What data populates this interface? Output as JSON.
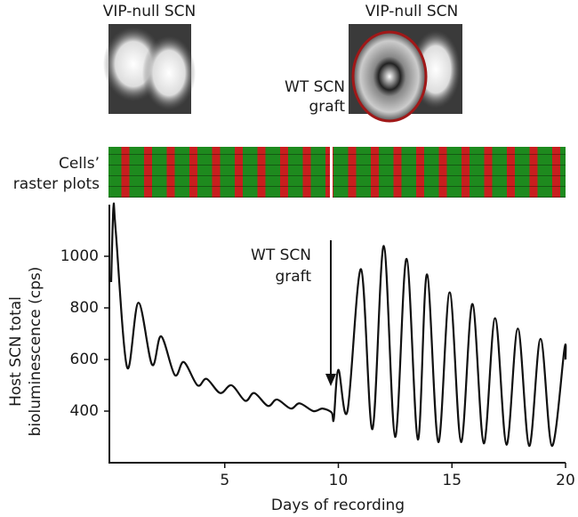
{
  "chart_data": {
    "type": "line",
    "image_labels": [
      "VIP-null SCN",
      "VIP-null SCN"
    ],
    "graft_label": [
      "WT SCN",
      "graft"
    ],
    "raster_label": [
      "Cells’",
      "raster plots"
    ],
    "ylabel": [
      "Host SCN total",
      "bioluminescence (cps)"
    ],
    "xlabel": "Days of recording",
    "annotation": [
      "WT SCN",
      "graft"
    ],
    "xlim": [
      0,
      20
    ],
    "ylim": [
      200,
      1200
    ],
    "xticks": [
      5,
      10,
      15,
      20
    ],
    "yticks": [
      400,
      600,
      800,
      1000
    ],
    "series": [
      {
        "color": "#111111",
        "x": [
          0,
          0.1,
          0.2,
          0.7,
          1.2,
          1.8,
          2.2,
          2.8,
          3.2,
          3.8,
          4.2,
          4.8,
          5.3,
          5.9,
          6.3,
          6.9,
          7.3,
          7.9,
          8.3,
          8.9,
          9.3,
          9.7,
          9.8,
          10.0,
          10.4,
          11.0,
          11.5,
          12.0,
          12.5,
          13.0,
          13.5,
          13.9,
          14.4,
          14.9,
          15.4,
          15.9,
          16.4,
          16.9,
          17.4,
          17.9,
          18.4,
          18.9,
          19.4,
          19.95,
          20
        ],
        "values": [
          900,
          1190,
          1100,
          570,
          820,
          580,
          690,
          540,
          590,
          500,
          525,
          470,
          500,
          440,
          470,
          420,
          445,
          410,
          430,
          400,
          410,
          395,
          370,
          560,
          400,
          950,
          330,
          1040,
          300,
          990,
          290,
          930,
          280,
          860,
          280,
          815,
          275,
          760,
          270,
          720,
          265,
          680,
          265,
          640,
          600
        ]
      }
    ]
  }
}
